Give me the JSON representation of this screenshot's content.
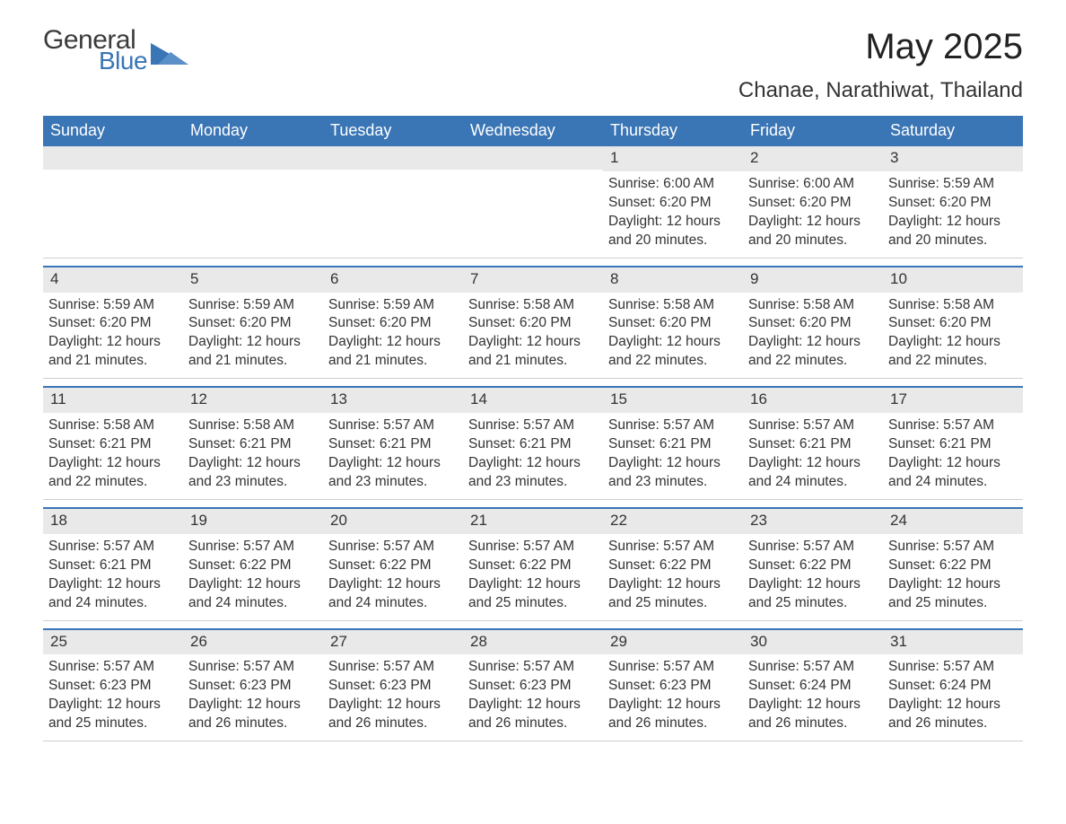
{
  "logo": {
    "text1": "General",
    "text2": "Blue",
    "triangle_color": "#3a75b5",
    "text_color": "#3b3b3b",
    "blue_color": "#3a75b5"
  },
  "title": "May 2025",
  "subtitle": "Chanae, Narathiwat, Thailand",
  "colors": {
    "header_bg": "#3a75b5",
    "header_text": "#ffffff",
    "daynum_bg": "#e9e9e9",
    "row_border": "#3a75b5",
    "body_text": "#333333",
    "background": "#ffffff"
  },
  "fontsizes": {
    "title": 40,
    "subtitle": 24,
    "dow": 18,
    "daynum": 17,
    "body": 15.5
  },
  "days_of_week": [
    "Sunday",
    "Monday",
    "Tuesday",
    "Wednesday",
    "Thursday",
    "Friday",
    "Saturday"
  ],
  "weeks": [
    [
      null,
      null,
      null,
      null,
      {
        "n": "1",
        "sunrise": "Sunrise: 6:00 AM",
        "sunset": "Sunset: 6:20 PM",
        "dl1": "Daylight: 12 hours",
        "dl2": "and 20 minutes."
      },
      {
        "n": "2",
        "sunrise": "Sunrise: 6:00 AM",
        "sunset": "Sunset: 6:20 PM",
        "dl1": "Daylight: 12 hours",
        "dl2": "and 20 minutes."
      },
      {
        "n": "3",
        "sunrise": "Sunrise: 5:59 AM",
        "sunset": "Sunset: 6:20 PM",
        "dl1": "Daylight: 12 hours",
        "dl2": "and 20 minutes."
      }
    ],
    [
      {
        "n": "4",
        "sunrise": "Sunrise: 5:59 AM",
        "sunset": "Sunset: 6:20 PM",
        "dl1": "Daylight: 12 hours",
        "dl2": "and 21 minutes."
      },
      {
        "n": "5",
        "sunrise": "Sunrise: 5:59 AM",
        "sunset": "Sunset: 6:20 PM",
        "dl1": "Daylight: 12 hours",
        "dl2": "and 21 minutes."
      },
      {
        "n": "6",
        "sunrise": "Sunrise: 5:59 AM",
        "sunset": "Sunset: 6:20 PM",
        "dl1": "Daylight: 12 hours",
        "dl2": "and 21 minutes."
      },
      {
        "n": "7",
        "sunrise": "Sunrise: 5:58 AM",
        "sunset": "Sunset: 6:20 PM",
        "dl1": "Daylight: 12 hours",
        "dl2": "and 21 minutes."
      },
      {
        "n": "8",
        "sunrise": "Sunrise: 5:58 AM",
        "sunset": "Sunset: 6:20 PM",
        "dl1": "Daylight: 12 hours",
        "dl2": "and 22 minutes."
      },
      {
        "n": "9",
        "sunrise": "Sunrise: 5:58 AM",
        "sunset": "Sunset: 6:20 PM",
        "dl1": "Daylight: 12 hours",
        "dl2": "and 22 minutes."
      },
      {
        "n": "10",
        "sunrise": "Sunrise: 5:58 AM",
        "sunset": "Sunset: 6:20 PM",
        "dl1": "Daylight: 12 hours",
        "dl2": "and 22 minutes."
      }
    ],
    [
      {
        "n": "11",
        "sunrise": "Sunrise: 5:58 AM",
        "sunset": "Sunset: 6:21 PM",
        "dl1": "Daylight: 12 hours",
        "dl2": "and 22 minutes."
      },
      {
        "n": "12",
        "sunrise": "Sunrise: 5:58 AM",
        "sunset": "Sunset: 6:21 PM",
        "dl1": "Daylight: 12 hours",
        "dl2": "and 23 minutes."
      },
      {
        "n": "13",
        "sunrise": "Sunrise: 5:57 AM",
        "sunset": "Sunset: 6:21 PM",
        "dl1": "Daylight: 12 hours",
        "dl2": "and 23 minutes."
      },
      {
        "n": "14",
        "sunrise": "Sunrise: 5:57 AM",
        "sunset": "Sunset: 6:21 PM",
        "dl1": "Daylight: 12 hours",
        "dl2": "and 23 minutes."
      },
      {
        "n": "15",
        "sunrise": "Sunrise: 5:57 AM",
        "sunset": "Sunset: 6:21 PM",
        "dl1": "Daylight: 12 hours",
        "dl2": "and 23 minutes."
      },
      {
        "n": "16",
        "sunrise": "Sunrise: 5:57 AM",
        "sunset": "Sunset: 6:21 PM",
        "dl1": "Daylight: 12 hours",
        "dl2": "and 24 minutes."
      },
      {
        "n": "17",
        "sunrise": "Sunrise: 5:57 AM",
        "sunset": "Sunset: 6:21 PM",
        "dl1": "Daylight: 12 hours",
        "dl2": "and 24 minutes."
      }
    ],
    [
      {
        "n": "18",
        "sunrise": "Sunrise: 5:57 AM",
        "sunset": "Sunset: 6:21 PM",
        "dl1": "Daylight: 12 hours",
        "dl2": "and 24 minutes."
      },
      {
        "n": "19",
        "sunrise": "Sunrise: 5:57 AM",
        "sunset": "Sunset: 6:22 PM",
        "dl1": "Daylight: 12 hours",
        "dl2": "and 24 minutes."
      },
      {
        "n": "20",
        "sunrise": "Sunrise: 5:57 AM",
        "sunset": "Sunset: 6:22 PM",
        "dl1": "Daylight: 12 hours",
        "dl2": "and 24 minutes."
      },
      {
        "n": "21",
        "sunrise": "Sunrise: 5:57 AM",
        "sunset": "Sunset: 6:22 PM",
        "dl1": "Daylight: 12 hours",
        "dl2": "and 25 minutes."
      },
      {
        "n": "22",
        "sunrise": "Sunrise: 5:57 AM",
        "sunset": "Sunset: 6:22 PM",
        "dl1": "Daylight: 12 hours",
        "dl2": "and 25 minutes."
      },
      {
        "n": "23",
        "sunrise": "Sunrise: 5:57 AM",
        "sunset": "Sunset: 6:22 PM",
        "dl1": "Daylight: 12 hours",
        "dl2": "and 25 minutes."
      },
      {
        "n": "24",
        "sunrise": "Sunrise: 5:57 AM",
        "sunset": "Sunset: 6:22 PM",
        "dl1": "Daylight: 12 hours",
        "dl2": "and 25 minutes."
      }
    ],
    [
      {
        "n": "25",
        "sunrise": "Sunrise: 5:57 AM",
        "sunset": "Sunset: 6:23 PM",
        "dl1": "Daylight: 12 hours",
        "dl2": "and 25 minutes."
      },
      {
        "n": "26",
        "sunrise": "Sunrise: 5:57 AM",
        "sunset": "Sunset: 6:23 PM",
        "dl1": "Daylight: 12 hours",
        "dl2": "and 26 minutes."
      },
      {
        "n": "27",
        "sunrise": "Sunrise: 5:57 AM",
        "sunset": "Sunset: 6:23 PM",
        "dl1": "Daylight: 12 hours",
        "dl2": "and 26 minutes."
      },
      {
        "n": "28",
        "sunrise": "Sunrise: 5:57 AM",
        "sunset": "Sunset: 6:23 PM",
        "dl1": "Daylight: 12 hours",
        "dl2": "and 26 minutes."
      },
      {
        "n": "29",
        "sunrise": "Sunrise: 5:57 AM",
        "sunset": "Sunset: 6:23 PM",
        "dl1": "Daylight: 12 hours",
        "dl2": "and 26 minutes."
      },
      {
        "n": "30",
        "sunrise": "Sunrise: 5:57 AM",
        "sunset": "Sunset: 6:24 PM",
        "dl1": "Daylight: 12 hours",
        "dl2": "and 26 minutes."
      },
      {
        "n": "31",
        "sunrise": "Sunrise: 5:57 AM",
        "sunset": "Sunset: 6:24 PM",
        "dl1": "Daylight: 12 hours",
        "dl2": "and 26 minutes."
      }
    ]
  ]
}
